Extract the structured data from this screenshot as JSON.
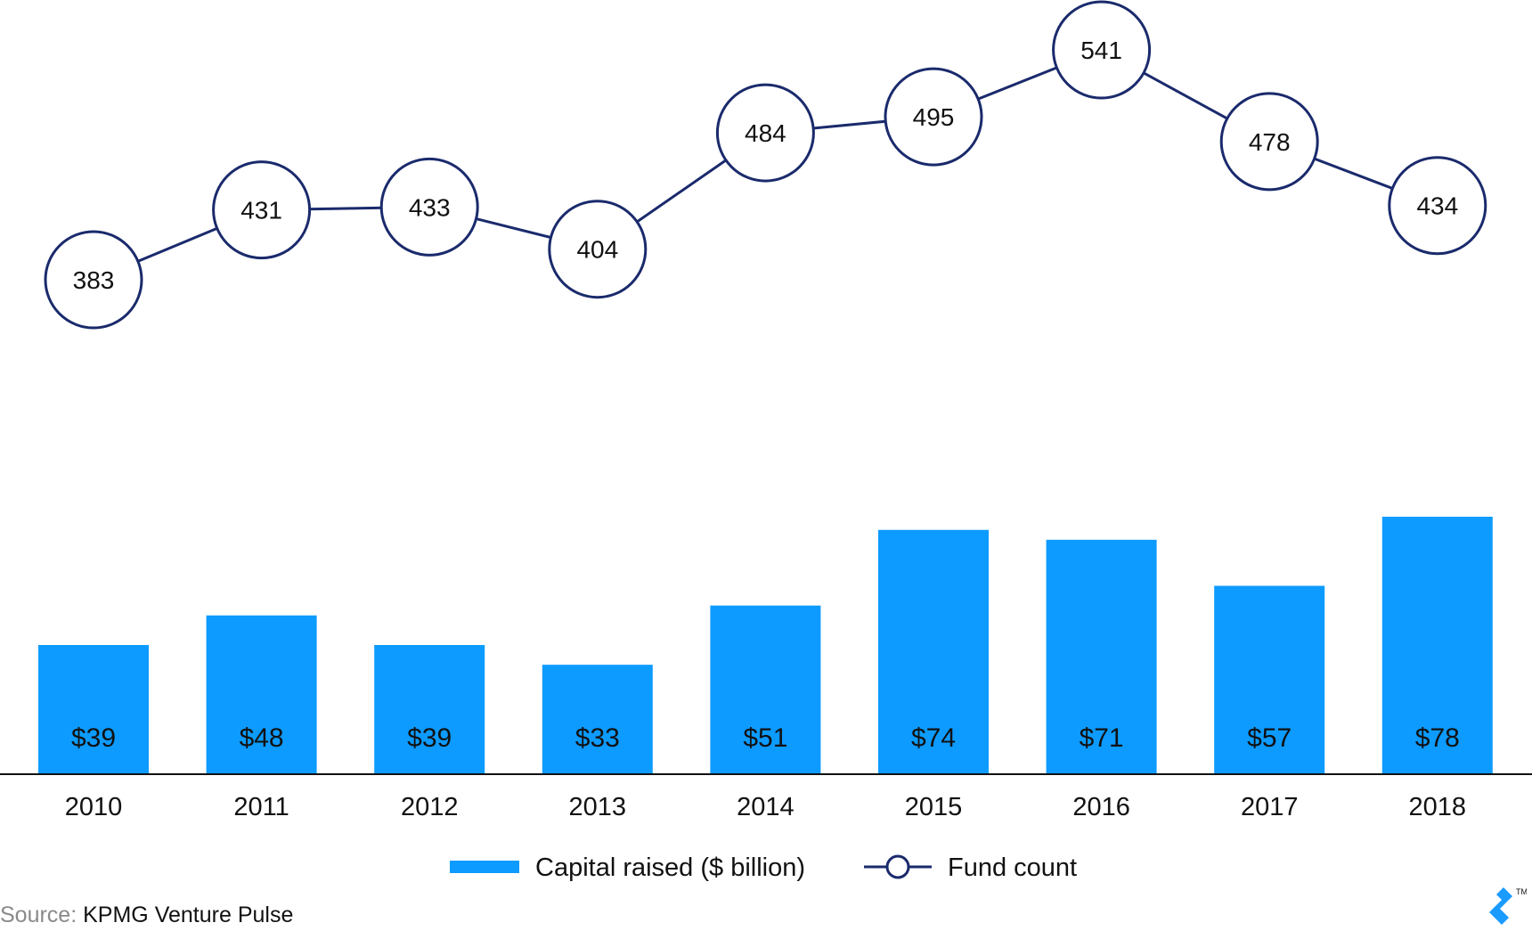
{
  "chart_data": {
    "type": "bar+line",
    "title": "",
    "categories": [
      "2010",
      "2011",
      "2012",
      "2013",
      "2014",
      "2015",
      "2016",
      "2017",
      "2018"
    ],
    "series": [
      {
        "name": "Capital raised ($ billion)",
        "type": "bar",
        "values": [
          39,
          48,
          39,
          33,
          51,
          74,
          71,
          57,
          78
        ],
        "labels": [
          "$39",
          "$48",
          "$39",
          "$33",
          "$51",
          "$74",
          "$71",
          "$57",
          "$78"
        ],
        "color": "#0d9bff"
      },
      {
        "name": "Fund count",
        "type": "line",
        "values": [
          383,
          431,
          433,
          404,
          484,
          495,
          541,
          478,
          434
        ],
        "labels": [
          "383",
          "431",
          "433",
          "404",
          "484",
          "495",
          "541",
          "478",
          "434"
        ],
        "color": "#1a2a6c"
      }
    ],
    "legend_position": "bottom-center",
    "grid": false
  },
  "source": {
    "label": "Source:",
    "text": "KPMG Venture Pulse"
  },
  "logo": {
    "icon": "toptal-logo-icon",
    "trademark": "TM",
    "color": "#1a9bff"
  }
}
